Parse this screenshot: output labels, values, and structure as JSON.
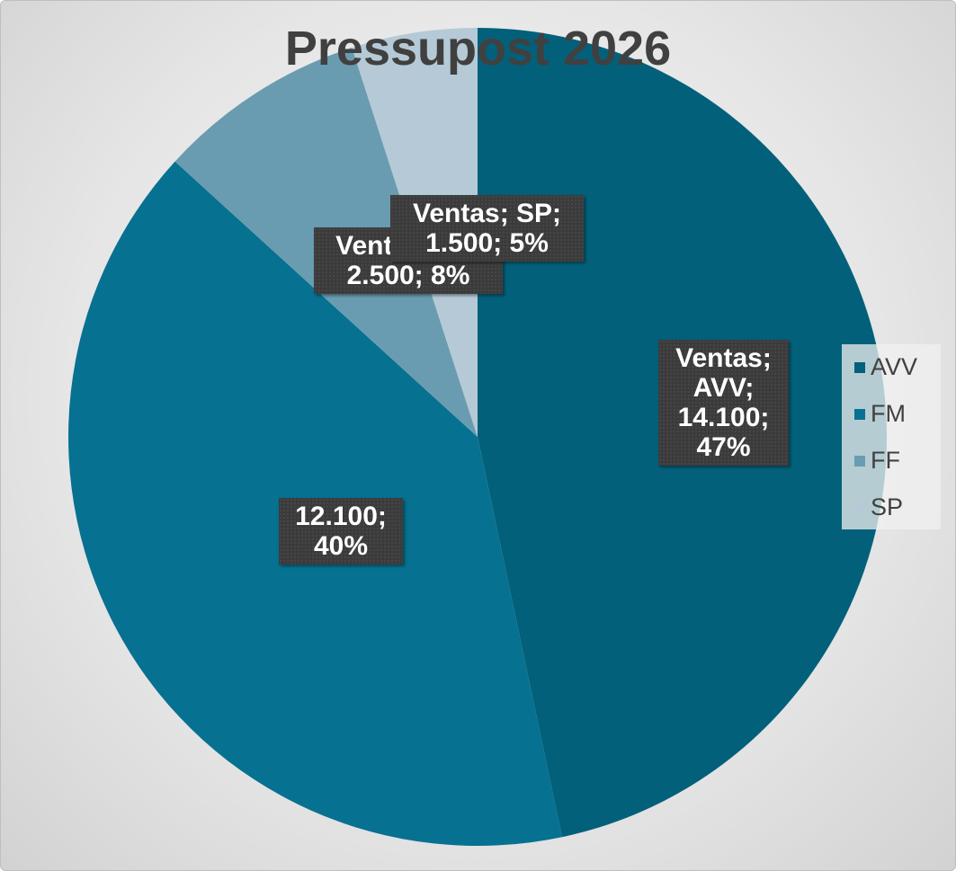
{
  "chart_data": {
    "type": "pie",
    "title": "Pressupost 2026",
    "categories": [
      "AVV",
      "FM",
      "FF",
      "SP"
    ],
    "values": [
      14100,
      12100,
      2500,
      1500
    ],
    "value_labels": [
      "Ventas; AVV; 14.100; 47%",
      "12.100; 40%",
      "Ventas; FF; 2.500; 8%",
      "Ventas; SP; 1.500; 5%"
    ],
    "colors": [
      "#03607a",
      "#077191",
      "#6a9cb1",
      "#b5cad6"
    ],
    "legend": "right"
  }
}
